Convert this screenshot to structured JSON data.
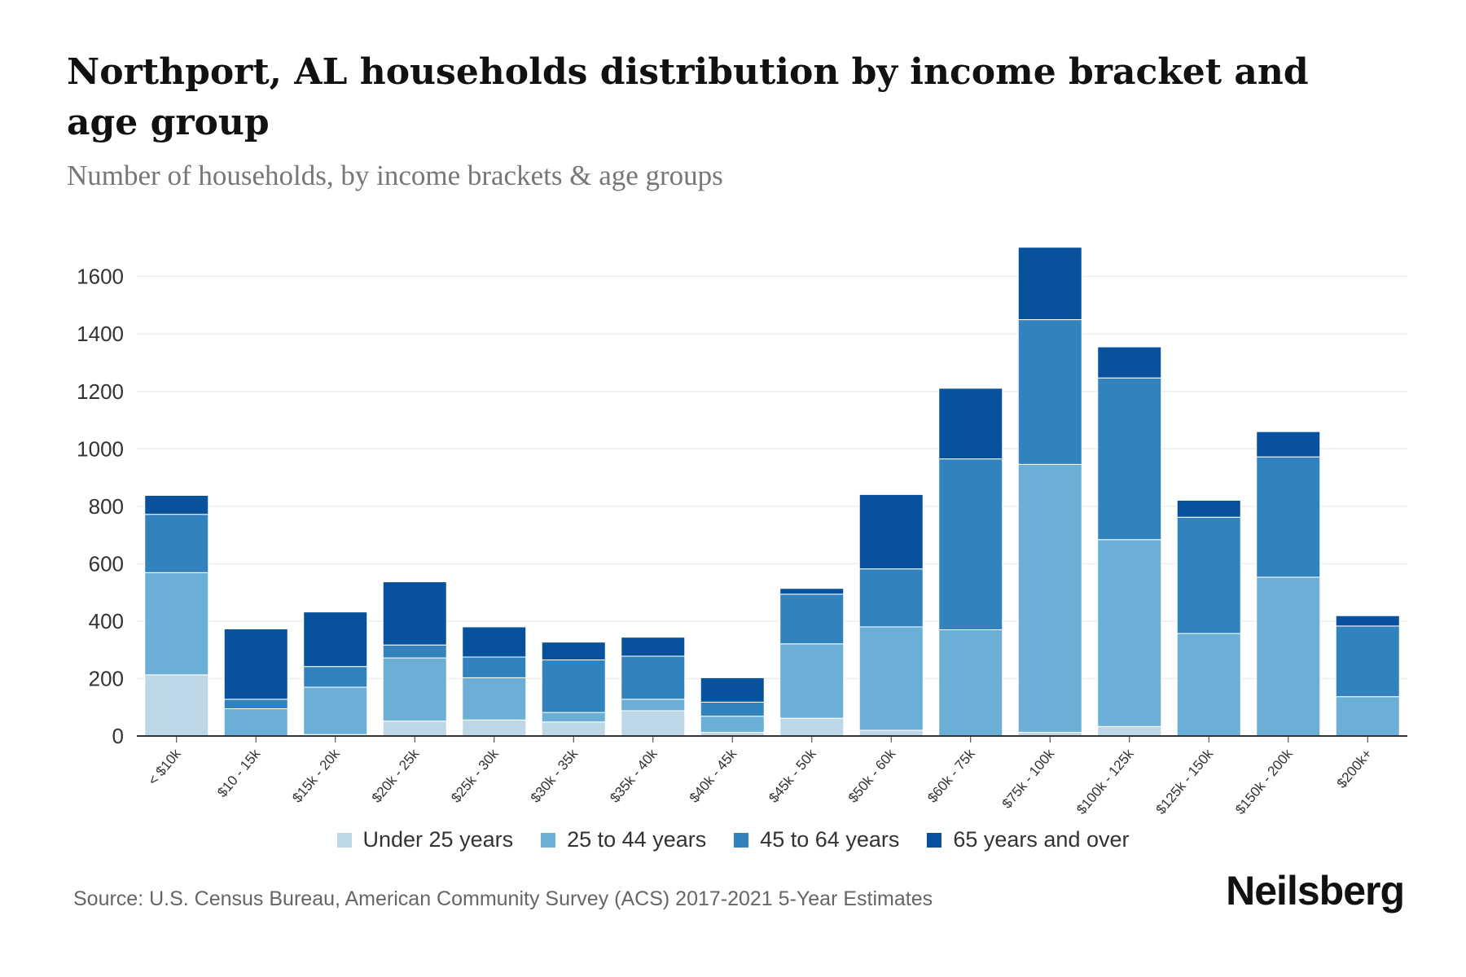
{
  "header": {
    "title": "Northport, AL households distribution by income bracket and age group",
    "subtitle": "Number of households, by income brackets & age groups"
  },
  "footer": {
    "source": "Source: U.S. Census Bureau, American Community Survey (ACS) 2017-2021 5-Year Estimates",
    "brand": "Neilsberg"
  },
  "chart_data": {
    "type": "bar",
    "stacked": true,
    "title": "Northport, AL households distribution by income bracket and age group",
    "subtitle": "Number of households, by income brackets & age groups",
    "xlabel": "",
    "ylabel": "",
    "ylim": [
      0,
      1700
    ],
    "yticks": [
      0,
      200,
      400,
      600,
      800,
      1000,
      1200,
      1400,
      1600
    ],
    "grid": true,
    "legend_position": "bottom",
    "categories": [
      "< $10k",
      "$10 - 15k",
      "$15k - 20k",
      "$20k - 25k",
      "$25k - 30k",
      "$30k - 35k",
      "$35k - 40k",
      "$40k - 45k",
      "$45k - 50k",
      "$50k - 60k",
      "$60k - 75k",
      "$75k - 100k",
      "$100k - 125k",
      "$125k - 150k",
      "$150k - 200k",
      "$200k+"
    ],
    "series": [
      {
        "name": "Under 25 years",
        "color": "#bdd7e7",
        "values": [
          213,
          0,
          5,
          52,
          56,
          49,
          88,
          13,
          62,
          20,
          0,
          13,
          33,
          0,
          0,
          0
        ]
      },
      {
        "name": "25 to 44 years",
        "color": "#6baed6",
        "values": [
          356,
          95,
          165,
          220,
          147,
          33,
          40,
          56,
          259,
          360,
          370,
          933,
          651,
          357,
          553,
          137
        ]
      },
      {
        "name": "45 to 64 years",
        "color": "#3182bd",
        "values": [
          203,
          33,
          72,
          45,
          72,
          183,
          150,
          49,
          173,
          202,
          595,
          504,
          563,
          405,
          419,
          246
        ]
      },
      {
        "name": "65 years and over",
        "color": "#08519c",
        "values": [
          66,
          245,
          190,
          220,
          105,
          62,
          66,
          85,
          20,
          259,
          246,
          252,
          108,
          59,
          88,
          36
        ]
      }
    ]
  }
}
